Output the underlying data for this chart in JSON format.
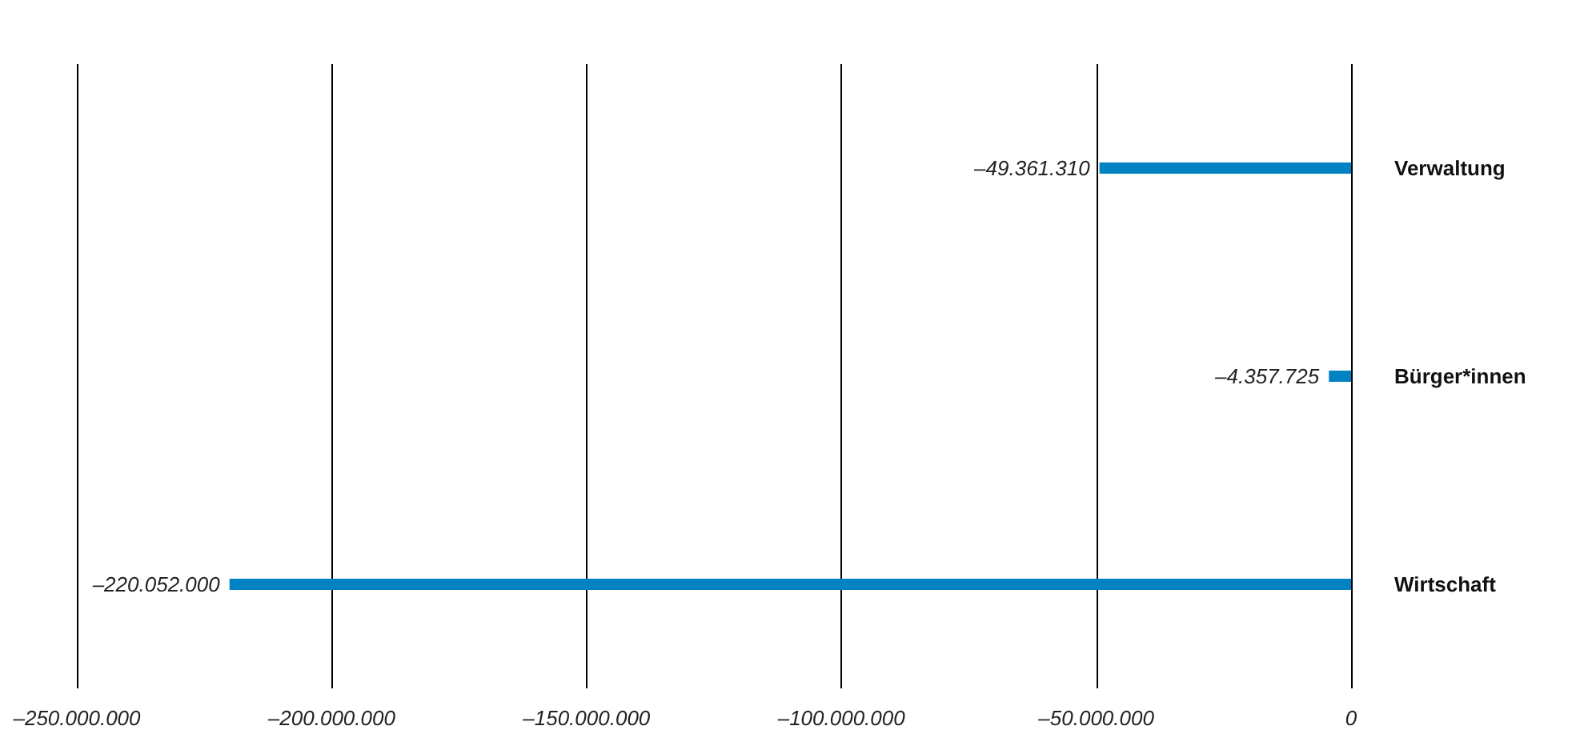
{
  "chart_data": {
    "type": "bar",
    "orientation": "horizontal",
    "categories": [
      "Verwaltung",
      "Bürger*innen",
      "Wirtschaft"
    ],
    "values": [
      -49361310,
      -4357725,
      -220052000
    ],
    "value_labels": [
      "–49.361.310",
      "–4.357.725",
      "–220.052.000"
    ],
    "color": "#0082c3",
    "xlim": [
      -250000000,
      0
    ],
    "xticks": [
      {
        "value": -250000000,
        "label": "–250.000.000"
      },
      {
        "value": -200000000,
        "label": "–200.000.000"
      },
      {
        "value": -150000000,
        "label": "–150.000.000"
      },
      {
        "value": -100000000,
        "label": "–100.000.000"
      },
      {
        "value": -50000000,
        "label": "–50.000.000"
      },
      {
        "value": 0,
        "label": "0"
      }
    ],
    "grid": "x"
  }
}
